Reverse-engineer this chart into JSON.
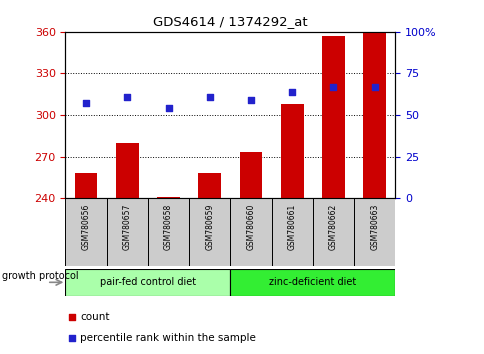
{
  "title": "GDS4614 / 1374292_at",
  "categories": [
    "GSM780656",
    "GSM780657",
    "GSM780658",
    "GSM780659",
    "GSM780660",
    "GSM780661",
    "GSM780662",
    "GSM780663"
  ],
  "bar_values": [
    258,
    280,
    241,
    258,
    273,
    308,
    357,
    360
  ],
  "percentile_values": [
    57,
    61,
    54,
    61,
    59,
    64,
    67,
    67
  ],
  "ylim_left": [
    240,
    360
  ],
  "ylim_right": [
    0,
    100
  ],
  "yticks_left": [
    240,
    270,
    300,
    330,
    360
  ],
  "yticks_right": [
    0,
    25,
    50,
    75,
    100
  ],
  "bar_color": "#cc0000",
  "percentile_color": "#2222cc",
  "group1_label": "pair-fed control diet",
  "group2_label": "zinc-deficient diet",
  "group1_color": "#aaffaa",
  "group2_color": "#33ee33",
  "xlabel_label": "growth protocol",
  "legend_count_label": "count",
  "legend_pct_label": "percentile rank within the sample",
  "bar_bottom": 240,
  "tick_label_color_left": "#cc0000",
  "tick_label_color_right": "#0000cc"
}
